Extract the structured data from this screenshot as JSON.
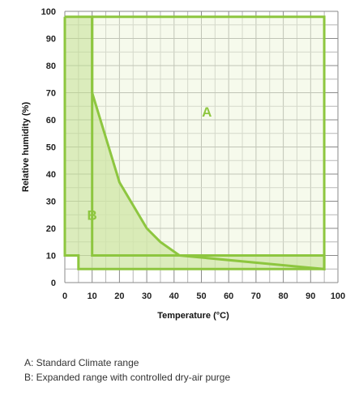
{
  "chart_data": {
    "type": "area",
    "xlabel": "Temperature (°C)",
    "ylabel": "Relative humidity (%)",
    "xlim": [
      0,
      100
    ],
    "ylim": [
      0,
      100
    ],
    "x_ticks": [
      0,
      10,
      20,
      30,
      40,
      50,
      60,
      70,
      80,
      90,
      100
    ],
    "y_ticks": [
      0,
      10,
      20,
      30,
      40,
      50,
      60,
      70,
      80,
      90,
      100
    ],
    "grid": true,
    "minor_grid_step": 5,
    "series": [
      {
        "name": "A",
        "region": "Standard Climate range",
        "boundary": [
          [
            10,
            98
          ],
          [
            95,
            98
          ],
          [
            95,
            5
          ],
          [
            42,
            10
          ],
          [
            10,
            10
          ],
          [
            10,
            98
          ]
        ],
        "fill": "#eef6dc",
        "stroke": "#8dc63f"
      },
      {
        "name": "B",
        "region": "Expanded range with controlled dry-air purge",
        "boundary": [
          [
            0,
            98
          ],
          [
            10,
            98
          ],
          [
            10,
            70
          ],
          [
            20,
            37
          ],
          [
            30,
            20
          ],
          [
            35,
            15
          ],
          [
            42,
            10
          ],
          [
            95,
            10
          ],
          [
            95,
            5
          ],
          [
            5,
            5
          ],
          [
            5,
            10
          ],
          [
            0,
            10
          ],
          [
            0,
            98
          ]
        ],
        "fill": "#cfe6a6",
        "stroke": "#8dc63f"
      }
    ],
    "annotations": [
      {
        "text": "A",
        "x": 52,
        "y": 63
      },
      {
        "text": "B",
        "x": 10,
        "y": 25
      }
    ]
  },
  "legend": {
    "line_a": "A: Standard Climate range",
    "line_b": "B: Expanded range with controlled dry-air purge"
  }
}
